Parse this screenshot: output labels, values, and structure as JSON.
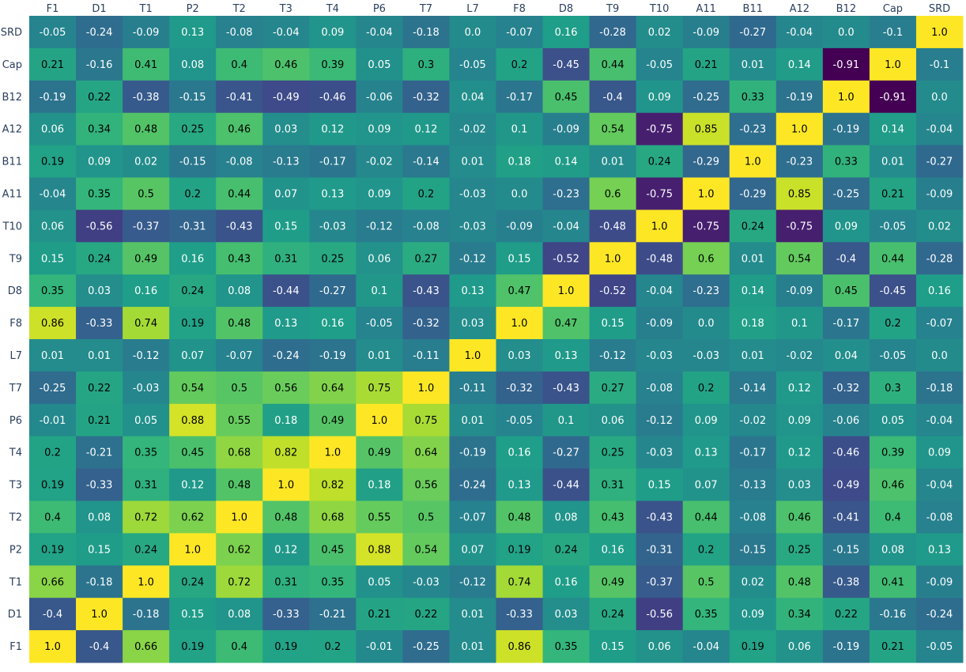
{
  "chart_data": {
    "type": "heatmap",
    "colorscale": "viridis",
    "zmin": -0.91,
    "zmax": 1.0,
    "x_labels": [
      "F1",
      "D1",
      "T1",
      "P2",
      "T2",
      "T3",
      "T4",
      "P6",
      "T7",
      "L7",
      "F8",
      "D8",
      "T9",
      "T10",
      "A11",
      "B11",
      "A12",
      "B12",
      "Cap",
      "SRD"
    ],
    "y_labels": [
      "SRD",
      "Cap",
      "B12",
      "A12",
      "B11",
      "A11",
      "T10",
      "T9",
      "D8",
      "F8",
      "L7",
      "T7",
      "P6",
      "T4",
      "T3",
      "T2",
      "P2",
      "T1",
      "D1",
      "F1"
    ],
    "values": [
      [
        "-0.05",
        "-0.24",
        "-0.09",
        "0.13",
        "-0.08",
        "-0.04",
        "0.09",
        "-0.04",
        "-0.18",
        "0.0",
        "-0.07",
        "0.16",
        "-0.28",
        "0.02",
        "-0.09",
        "-0.27",
        "-0.04",
        "0.0",
        "-0.1",
        "1.0"
      ],
      [
        "0.21",
        "-0.16",
        "0.41",
        "0.08",
        "0.4",
        "0.46",
        "0.39",
        "0.05",
        "0.3",
        "-0.05",
        "0.2",
        "-0.45",
        "0.44",
        "-0.05",
        "0.21",
        "0.01",
        "0.14",
        "-0.91",
        "1.0",
        "-0.1"
      ],
      [
        "-0.19",
        "0.22",
        "-0.38",
        "-0.15",
        "-0.41",
        "-0.49",
        "-0.46",
        "-0.06",
        "-0.32",
        "0.04",
        "-0.17",
        "0.45",
        "-0.4",
        "0.09",
        "-0.25",
        "0.33",
        "-0.19",
        "1.0",
        "-0.91",
        "0.0"
      ],
      [
        "0.06",
        "0.34",
        "0.48",
        "0.25",
        "0.46",
        "0.03",
        "0.12",
        "0.09",
        "0.12",
        "-0.02",
        "0.1",
        "-0.09",
        "0.54",
        "-0.75",
        "0.85",
        "-0.23",
        "1.0",
        "-0.19",
        "0.14",
        "-0.04"
      ],
      [
        "0.19",
        "0.09",
        "0.02",
        "-0.15",
        "-0.08",
        "-0.13",
        "-0.17",
        "-0.02",
        "-0.14",
        "0.01",
        "0.18",
        "0.14",
        "0.01",
        "0.24",
        "-0.29",
        "1.0",
        "-0.23",
        "0.33",
        "0.01",
        "-0.27"
      ],
      [
        "-0.04",
        "0.35",
        "0.5",
        "0.2",
        "0.44",
        "0.07",
        "0.13",
        "0.09",
        "0.2",
        "-0.03",
        "0.0",
        "-0.23",
        "0.6",
        "-0.75",
        "1.0",
        "-0.29",
        "0.85",
        "-0.25",
        "0.21",
        "-0.09"
      ],
      [
        "0.06",
        "-0.56",
        "-0.37",
        "-0.31",
        "-0.43",
        "0.15",
        "-0.03",
        "-0.12",
        "-0.08",
        "-0.03",
        "-0.09",
        "-0.04",
        "-0.48",
        "1.0",
        "-0.75",
        "0.24",
        "-0.75",
        "0.09",
        "-0.05",
        "0.02"
      ],
      [
        "0.15",
        "0.24",
        "0.49",
        "0.16",
        "0.43",
        "0.31",
        "0.25",
        "0.06",
        "0.27",
        "-0.12",
        "0.15",
        "-0.52",
        "1.0",
        "-0.48",
        "0.6",
        "0.01",
        "0.54",
        "-0.4",
        "0.44",
        "-0.28"
      ],
      [
        "0.35",
        "0.03",
        "0.16",
        "0.24",
        "0.08",
        "-0.44",
        "-0.27",
        "0.1",
        "-0.43",
        "0.13",
        "0.47",
        "1.0",
        "-0.52",
        "-0.04",
        "-0.23",
        "0.14",
        "-0.09",
        "0.45",
        "-0.45",
        "0.16"
      ],
      [
        "0.86",
        "-0.33",
        "0.74",
        "0.19",
        "0.48",
        "0.13",
        "0.16",
        "-0.05",
        "-0.32",
        "0.03",
        "1.0",
        "0.47",
        "0.15",
        "-0.09",
        "0.0",
        "0.18",
        "0.1",
        "-0.17",
        "0.2",
        "-0.07"
      ],
      [
        "0.01",
        "0.01",
        "-0.12",
        "0.07",
        "-0.07",
        "-0.24",
        "-0.19",
        "0.01",
        "-0.11",
        "1.0",
        "0.03",
        "0.13",
        "-0.12",
        "-0.03",
        "-0.03",
        "0.01",
        "-0.02",
        "0.04",
        "-0.05",
        "0.0"
      ],
      [
        "-0.25",
        "0.22",
        "-0.03",
        "0.54",
        "0.5",
        "0.56",
        "0.64",
        "0.75",
        "1.0",
        "-0.11",
        "-0.32",
        "-0.43",
        "0.27",
        "-0.08",
        "0.2",
        "-0.14",
        "0.12",
        "-0.32",
        "0.3",
        "-0.18"
      ],
      [
        "-0.01",
        "0.21",
        "0.05",
        "0.88",
        "0.55",
        "0.18",
        "0.49",
        "1.0",
        "0.75",
        "0.01",
        "-0.05",
        "0.1",
        "0.06",
        "-0.12",
        "0.09",
        "-0.02",
        "0.09",
        "-0.06",
        "0.05",
        "-0.04"
      ],
      [
        "0.2",
        "-0.21",
        "0.35",
        "0.45",
        "0.68",
        "0.82",
        "1.0",
        "0.49",
        "0.64",
        "-0.19",
        "0.16",
        "-0.27",
        "0.25",
        "-0.03",
        "0.13",
        "-0.17",
        "0.12",
        "-0.46",
        "0.39",
        "0.09"
      ],
      [
        "0.19",
        "-0.33",
        "0.31",
        "0.12",
        "0.48",
        "1.0",
        "0.82",
        "0.18",
        "0.56",
        "-0.24",
        "0.13",
        "-0.44",
        "0.31",
        "0.15",
        "0.07",
        "-0.13",
        "0.03",
        "-0.49",
        "0.46",
        "-0.04"
      ],
      [
        "0.4",
        "0.08",
        "0.72",
        "0.62",
        "1.0",
        "0.48",
        "0.68",
        "0.55",
        "0.5",
        "-0.07",
        "0.48",
        "0.08",
        "0.43",
        "-0.43",
        "0.44",
        "-0.08",
        "0.46",
        "-0.41",
        "0.4",
        "-0.08"
      ],
      [
        "0.19",
        "0.15",
        "0.24",
        "1.0",
        "0.62",
        "0.12",
        "0.45",
        "0.88",
        "0.54",
        "0.07",
        "0.19",
        "0.24",
        "0.16",
        "-0.31",
        "0.2",
        "-0.15",
        "0.25",
        "-0.15",
        "0.08",
        "0.13"
      ],
      [
        "0.66",
        "-0.18",
        "1.0",
        "0.24",
        "0.72",
        "0.31",
        "0.35",
        "0.05",
        "-0.03",
        "-0.12",
        "0.74",
        "0.16",
        "0.49",
        "-0.37",
        "0.5",
        "0.02",
        "0.48",
        "-0.38",
        "0.41",
        "-0.09"
      ],
      [
        "-0.4",
        "1.0",
        "-0.18",
        "0.15",
        "0.08",
        "-0.33",
        "-0.21",
        "0.21",
        "0.22",
        "0.01",
        "-0.33",
        "0.03",
        "0.24",
        "-0.56",
        "0.35",
        "0.09",
        "0.34",
        "0.22",
        "-0.16",
        "-0.24"
      ],
      [
        "1.0",
        "-0.4",
        "0.66",
        "0.19",
        "0.4",
        "0.19",
        "0.2",
        "-0.01",
        "-0.25",
        "0.01",
        "0.86",
        "0.35",
        "0.15",
        "0.06",
        "-0.04",
        "0.19",
        "0.06",
        "-0.19",
        "0.21",
        "-0.05"
      ]
    ]
  }
}
